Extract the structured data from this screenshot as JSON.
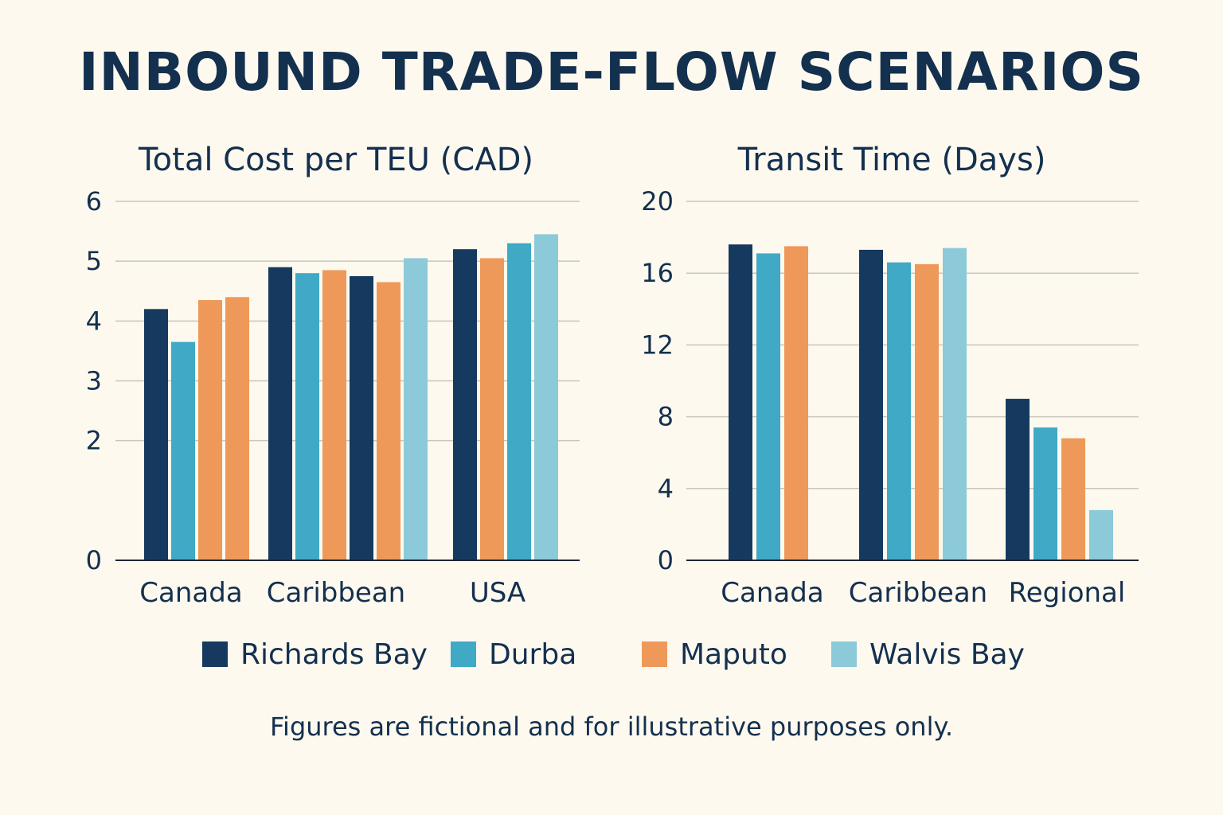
{
  "title": "INBOUND TRADE-FLOW SCENARIOS",
  "footnote": "Figures are fictional and for illustrative purposes only.",
  "legend": [
    {
      "name": "Richards Bay",
      "color": "#163a5f"
    },
    {
      "name": "Durba",
      "color": "#3fa9c6"
    },
    {
      "name": "Maputo",
      "color": "#ee9959"
    },
    {
      "name": "Walvis Bay",
      "color": "#8ccad9"
    }
  ],
  "chart_data": [
    {
      "type": "bar",
      "title": "Total Cost per TEU (CAD)",
      "xlabel": "",
      "ylabel": "",
      "ylim": [
        0,
        6
      ],
      "yticks": [
        0,
        2,
        3,
        4,
        5,
        6
      ],
      "grid": true,
      "categories": [
        "Canada",
        "Caribbean",
        "USA"
      ],
      "groups": [
        {
          "category": "Canada",
          "bars": [
            {
              "series": "Richards Bay",
              "value": 4.2
            },
            {
              "series": "Durba",
              "value": 3.65
            },
            {
              "series": "Maputo",
              "value": 4.35
            },
            {
              "series": "Maputo",
              "value": 4.4
            }
          ]
        },
        {
          "category": "Caribbean",
          "bars": [
            {
              "series": "Richards Bay",
              "value": 4.9
            },
            {
              "series": "Durba",
              "value": 4.8
            },
            {
              "series": "Maputo",
              "value": 4.85
            },
            {
              "series": "Richards Bay",
              "value": 4.75
            },
            {
              "series": "Maputo",
              "value": 4.65
            },
            {
              "series": "Walvis Bay",
              "value": 5.05
            }
          ]
        },
        {
          "category": "USA",
          "bars": [
            {
              "series": "Richards Bay",
              "value": 5.2
            },
            {
              "series": "Maputo",
              "value": 5.05
            },
            {
              "series": "Durba",
              "value": 5.3
            },
            {
              "series": "Walvis Bay",
              "value": 5.45
            }
          ]
        }
      ]
    },
    {
      "type": "bar",
      "title": "Transit Time (Days)",
      "xlabel": "",
      "ylabel": "",
      "ylim": [
        0,
        20
      ],
      "yticks": [
        0,
        4,
        8,
        12,
        16,
        20
      ],
      "grid": true,
      "categories": [
        "Canada",
        "Caribbean",
        "Regional"
      ],
      "groups": [
        {
          "category": "Canada",
          "bars": [
            {
              "series": "Richards Bay",
              "value": 17.6
            },
            {
              "series": "Durba",
              "value": 17.1
            },
            {
              "series": "Maputo",
              "value": 17.5
            }
          ]
        },
        {
          "category": "Caribbean",
          "bars": [
            {
              "series": "Richards Bay",
              "value": 17.3
            },
            {
              "series": "Durba",
              "value": 16.6
            },
            {
              "series": "Maputo",
              "value": 16.5
            },
            {
              "series": "Walvis Bay",
              "value": 17.4
            }
          ]
        },
        {
          "category": "Regional",
          "bars": [
            {
              "series": "Richards Bay",
              "value": 9.0
            },
            {
              "series": "Durba",
              "value": 7.4
            },
            {
              "series": "Maputo",
              "value": 6.8
            },
            {
              "series": "Walvis Bay",
              "value": 2.8
            }
          ]
        }
      ]
    }
  ]
}
